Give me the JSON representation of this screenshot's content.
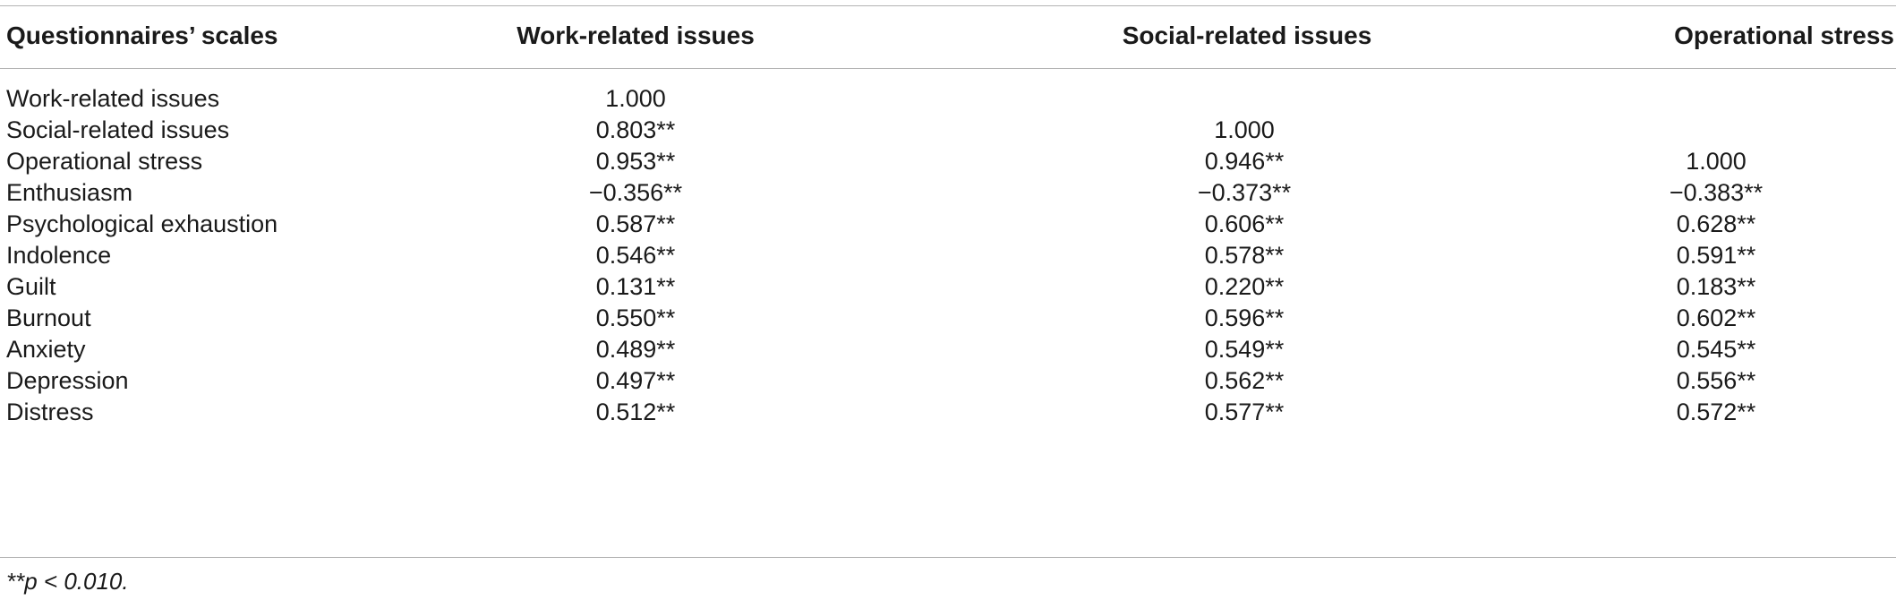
{
  "table": {
    "headers": [
      "Questionnaires’ scales",
      "Work-related issues",
      "Social-related issues",
      "Operational stress"
    ],
    "rows": [
      [
        "Work-related issues",
        "1.000",
        "",
        ""
      ],
      [
        "Social-related issues",
        "0.803**",
        "1.000",
        ""
      ],
      [
        "Operational stress",
        "0.953**",
        "0.946**",
        "1.000"
      ],
      [
        "Enthusiasm",
        "−0.356**",
        "−0.373**",
        "−0.383**"
      ],
      [
        "Psychological exhaustion",
        "0.587**",
        "0.606**",
        "0.628**"
      ],
      [
        "Indolence",
        "0.546**",
        "0.578**",
        "0.591**"
      ],
      [
        "Guilt",
        "0.131**",
        "0.220**",
        "0.183**"
      ],
      [
        "Burnout",
        "0.550**",
        "0.596**",
        "0.602**"
      ],
      [
        "Anxiety",
        "0.489**",
        "0.549**",
        "0.545**"
      ],
      [
        "Depression",
        "0.497**",
        "0.562**",
        "0.556**"
      ],
      [
        "Distress",
        "0.512**",
        "0.577**",
        "0.572**"
      ]
    ],
    "footnote": "**p < 0.010."
  }
}
